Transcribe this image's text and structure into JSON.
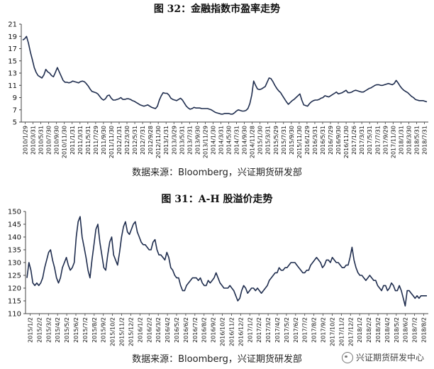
{
  "chart_data": [
    {
      "type": "line",
      "title": "图 32：金融指数市盈率走势",
      "source": "数据来源：Bloomberg，兴证期货研发部",
      "ylim": [
        5,
        21
      ],
      "yticks": [
        5,
        7,
        9,
        11,
        13,
        15,
        17,
        19,
        21
      ],
      "grid": false,
      "color": "#1f2d4e",
      "x_labels": [
        "2010/1/29",
        "2010/3/31",
        "2010/5/31",
        "2010/7/30",
        "2010/9/30",
        "2010/11/30",
        "2011/1/31",
        "2011/3/31",
        "2011/5/31",
        "2011/7/29",
        "2011/9/30",
        "2011/11/30",
        "2012/1/31",
        "2012/3/30",
        "2012/5/31",
        "2012/7/31",
        "2012/9/28",
        "2012/11/30",
        "2013/1/31",
        "2013/3/29",
        "2013/5/31",
        "2013/7/31",
        "2013/9/30",
        "2013/11/29",
        "2014/1/30",
        "2014/3/31",
        "2014/5/30",
        "2014/7/31",
        "2014/9/30",
        "2014/11/28",
        "2015/1/30",
        "2015/3/31",
        "2015/5/29",
        "2015/7/31",
        "2015/9/30",
        "2015/11/30",
        "2016/1/29",
        "2016/3/31",
        "2016/5/31",
        "2016/7/29",
        "2016/9/30",
        "2016/11/30",
        "2017/1/26",
        "2017/3/31",
        "2017/5/31",
        "2017/7/31",
        "2017/9/29",
        "2017/11/30",
        "2018/1/31",
        "2018/3/30",
        "2018/5/31",
        "2018/7/31"
      ],
      "values": [
        18.4,
        18.6,
        19.0,
        17.9,
        16.4,
        15.2,
        13.9,
        13.1,
        12.6,
        12.4,
        12.2,
        12.7,
        13.6,
        13.2,
        13.0,
        12.6,
        12.4,
        13.1,
        13.9,
        13.2,
        12.5,
        11.8,
        11.5,
        11.5,
        11.4,
        11.5,
        11.7,
        11.6,
        11.5,
        11.4,
        11.6,
        11.7,
        11.6,
        11.3,
        10.9,
        10.4,
        10.0,
        9.9,
        9.8,
        9.6,
        9.2,
        8.8,
        8.6,
        8.8,
        9.3,
        9.4,
        8.9,
        8.6,
        8.6,
        8.7,
        8.8,
        9.0,
        8.7,
        8.7,
        8.8,
        8.8,
        8.7,
        8.5,
        8.4,
        8.2,
        8.0,
        7.8,
        7.7,
        7.6,
        7.7,
        7.8,
        7.6,
        7.4,
        7.3,
        7.2,
        7.6,
        8.6,
        9.3,
        9.8,
        9.7,
        9.7,
        9.4,
        8.9,
        8.7,
        8.6,
        8.5,
        8.7,
        8.9,
        8.6,
        8.1,
        7.6,
        7.3,
        7.1,
        7.2,
        7.4,
        7.3,
        7.3,
        7.3,
        7.2,
        7.2,
        7.2,
        7.2,
        7.1,
        7.0,
        6.8,
        6.6,
        6.5,
        6.4,
        6.3,
        6.3,
        6.4,
        6.4,
        6.4,
        6.3,
        6.3,
        6.5,
        6.8,
        7.0,
        6.9,
        6.8,
        6.8,
        6.9,
        7.2,
        8.0,
        9.4,
        11.7,
        11.0,
        10.4,
        10.3,
        10.4,
        10.6,
        10.8,
        11.5,
        12.2,
        12.1,
        11.6,
        11.0,
        10.5,
        10.1,
        9.8,
        9.3,
        8.8,
        8.3,
        7.9,
        8.2,
        8.5,
        8.7,
        9.0,
        9.3,
        9.6,
        8.6,
        7.8,
        7.7,
        7.6,
        8.0,
        8.3,
        8.5,
        8.6,
        8.6,
        8.7,
        8.9,
        9.0,
        9.3,
        9.2,
        9.1,
        9.3,
        9.5,
        9.7,
        9.9,
        9.6,
        9.7,
        9.8,
        10.0,
        10.2,
        9.8,
        9.8,
        9.9,
        10.1,
        10.2,
        10.1,
        10.0,
        9.9,
        9.9,
        10.1,
        10.3,
        10.5,
        10.6,
        10.8,
        11.0,
        11.1,
        11.1,
        11.0,
        11.0,
        11.1,
        11.2,
        11.3,
        11.2,
        11.1,
        11.3,
        11.8,
        11.4,
        10.9,
        10.5,
        10.2,
        10.0,
        9.8,
        9.5,
        9.2,
        9.0,
        8.7,
        8.6,
        8.5,
        8.5,
        8.5,
        8.4,
        8.3
      ]
    },
    {
      "type": "line",
      "title": "图 31：A-H 股溢价走势",
      "source": "数据来源：Bloomberg，兴证期货研发部",
      "ylim": [
        110,
        150
      ],
      "yticks": [
        110,
        115,
        120,
        125,
        130,
        135,
        140,
        145,
        150
      ],
      "grid": false,
      "color": "#1f2d4e",
      "x_labels": [
        "2015/1/2",
        "2015/2/2",
        "2015/3/2",
        "2015/4/2",
        "2015/5/2",
        "2015/6/2",
        "2015/7/2",
        "2015/8/2",
        "2015/9/2",
        "2015/10/2",
        "2015/11/2",
        "2015/12/2",
        "2016/1/2",
        "2016/2/2",
        "2016/3/2",
        "2016/4/2",
        "2016/5/2",
        "2016/6/2",
        "2016/7/2",
        "2016/8/2",
        "2016/9/2",
        "2016/10/2",
        "2016/11/2",
        "2016/12/2",
        "2017/1/2",
        "2017/2/2",
        "2017/3/2",
        "2017/4/2",
        "2017/5/2",
        "2017/6/2",
        "2017/7/2",
        "2017/8/2",
        "2017/9/2",
        "2017/10/2",
        "2017/11/2",
        "2017/12/2",
        "2018/1/2",
        "2018/2/2",
        "2018/3/2",
        "2018/4/2",
        "2018/5/2",
        "2018/6/2",
        "2018/7/2",
        "2018/8/2"
      ],
      "values": [
        124,
        130,
        127,
        122,
        121,
        122,
        121,
        122,
        124,
        128,
        131,
        134,
        135,
        131,
        128,
        124,
        122,
        124,
        128,
        130,
        132,
        129,
        127,
        128,
        130,
        140,
        146,
        148,
        140,
        136,
        132,
        127,
        124,
        131,
        137,
        143,
        145,
        138,
        133,
        128,
        127,
        133,
        138,
        140,
        133,
        131,
        129,
        134,
        140,
        144,
        146,
        142,
        141,
        143,
        145,
        146,
        142,
        140,
        138,
        137,
        137,
        136,
        135,
        135,
        138,
        139,
        135,
        133,
        133,
        132,
        131,
        134,
        132,
        128,
        127,
        125,
        124,
        124,
        121,
        119,
        119,
        121,
        122,
        123,
        124,
        124,
        124,
        123,
        124,
        122,
        121,
        121,
        123,
        122,
        123,
        124,
        126,
        124,
        122,
        121,
        120,
        120,
        120,
        121,
        120,
        119,
        117,
        115,
        116,
        119,
        121,
        120,
        118,
        119,
        120,
        120,
        119,
        120,
        119,
        118,
        119,
        120,
        121,
        123,
        124,
        125,
        126,
        126,
        128,
        127,
        127,
        128,
        128,
        129,
        130,
        130,
        130,
        129,
        128,
        127,
        126,
        126,
        127,
        127,
        129,
        130,
        131,
        132,
        131,
        130,
        128,
        129,
        131,
        131,
        130,
        132,
        131,
        130,
        130,
        129,
        128,
        128,
        129,
        129,
        132,
        136,
        131,
        128,
        126,
        125,
        125,
        124,
        123,
        124,
        125,
        124,
        123,
        123,
        121,
        120,
        119,
        121,
        121,
        119,
        120,
        122,
        121,
        119,
        119,
        121,
        119,
        116,
        113,
        119,
        119,
        118,
        117,
        116,
        117,
        116,
        117,
        117,
        117,
        117
      ]
    }
  ],
  "watermark": "兴证期货研发中心"
}
